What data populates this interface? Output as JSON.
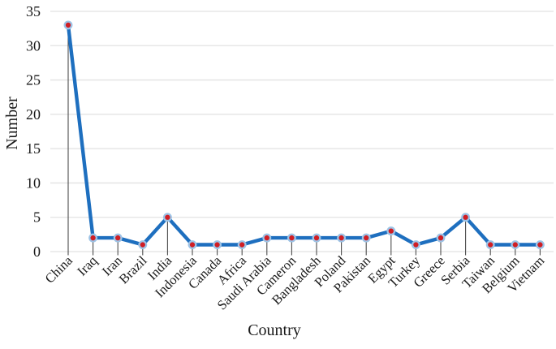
{
  "chart_data": {
    "type": "line",
    "title": "",
    "xlabel": "Country",
    "ylabel": "Number",
    "categories": [
      "China",
      "Iraq",
      "Iran",
      "Brazil",
      "India",
      "Indonesia",
      "Canada",
      "Africa",
      "Saudi Arabia",
      "Cameron",
      "Bangladesh",
      "Poland",
      "Pakistan",
      "Egypt",
      "Turkey",
      "Greece",
      "Serbia",
      "Taiwan",
      "Belgium",
      "Vietnam"
    ],
    "values": [
      33,
      2,
      2,
      1,
      5,
      1,
      1,
      1,
      2,
      2,
      2,
      2,
      2,
      3,
      1,
      2,
      5,
      1,
      1,
      1
    ],
    "ylim": [
      0,
      35
    ],
    "yticks": [
      0,
      5,
      10,
      15,
      20,
      25,
      30,
      35
    ],
    "grid": "horizontal",
    "legend": "none",
    "marker": "circle",
    "drop_lines": true,
    "x_label_rotation_deg": -45,
    "colors": {
      "line": "#1e6fbf",
      "marker_fill": "#d01e24",
      "marker_stroke": "#9dc3e6",
      "gridline": "#e2e2e2",
      "drop_line": "#4d4d4d",
      "text": "#1a1a1a",
      "background": "#ffffff"
    }
  }
}
